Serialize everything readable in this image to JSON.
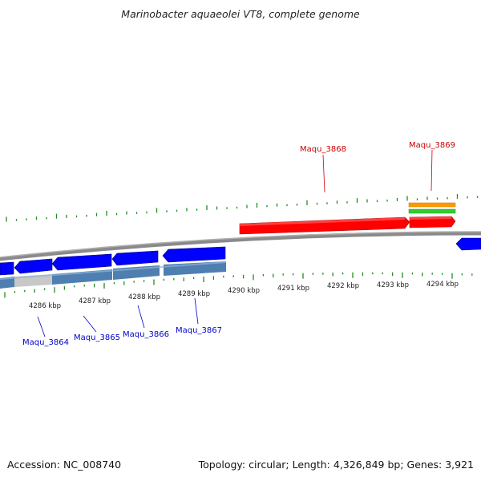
{
  "title": "Marinobacter aquaeolei VT8, complete genome",
  "footer": {
    "accession": "Accession: NC_008740",
    "summary": "Topology: circular; Length: 4,326,849 bp; Genes: 3,921"
  },
  "colors": {
    "forward_gene": "#ff0000",
    "reverse_gene": "#0000ff",
    "cds_reverse": "#4f7fb0",
    "backbone": "#808080",
    "gc_tick": "#228b22",
    "forward_label": "#cc0000",
    "reverse_label": "#0000cc",
    "feature_orange": "#ff9900",
    "feature_green": "#33cc33"
  },
  "scale": {
    "unit": "kbp",
    "positions": [
      {
        "label": "4286 kbp"
      },
      {
        "label": "4287 kbp"
      },
      {
        "label": "4288 kbp"
      },
      {
        "label": "4289 kbp"
      },
      {
        "label": "4290 kbp"
      },
      {
        "label": "4291 kbp"
      },
      {
        "label": "4292 kbp"
      },
      {
        "label": "4293 kbp"
      },
      {
        "label": "4294 kbp"
      }
    ]
  },
  "genes": {
    "forward": [
      {
        "name": "Maqu_3868"
      },
      {
        "name": "Maqu_3869"
      }
    ],
    "reverse": [
      {
        "name": "Maqu_3864"
      },
      {
        "name": "Maqu_3865"
      },
      {
        "name": "Maqu_3866"
      },
      {
        "name": "Maqu_3867"
      }
    ]
  }
}
